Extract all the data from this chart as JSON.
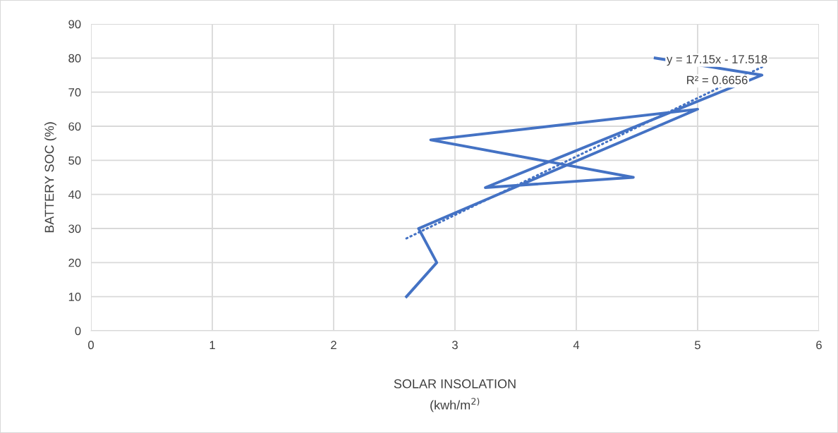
{
  "chart_data": {
    "type": "line",
    "xlabel": "SOLAR INSOLATION\n(kwh/m$^{2)}$",
    "ylabel": "BATTERY SOC (%)",
    "series": [
      {
        "color": "#4472c4",
        "x": [
          2.6,
          2.85,
          2.7,
          5.0,
          2.8,
          4.47,
          3.25,
          5.53,
          4.65
        ],
        "values": [
          10,
          20,
          30,
          65,
          56,
          45,
          42,
          75,
          80
        ]
      },
      {
        "color": "#4472c4",
        "line_style": "dotted",
        "x": [
          2.6,
          5.55
        ],
        "values": [
          27.1,
          77.7
        ]
      }
    ],
    "annotations": [
      "y = 17.15x - 17.518",
      "R² = 0.6656"
    ],
    "xlim": [
      0,
      6
    ],
    "xticks": [
      0,
      1,
      2,
      3,
      4,
      5,
      6
    ],
    "ylim": [
      0,
      90
    ],
    "yticks": [
      0,
      10,
      20,
      30,
      40,
      50,
      60,
      70,
      80,
      90
    ],
    "grid": true,
    "legend": false,
    "marker": "none",
    "line_style": "solid"
  }
}
